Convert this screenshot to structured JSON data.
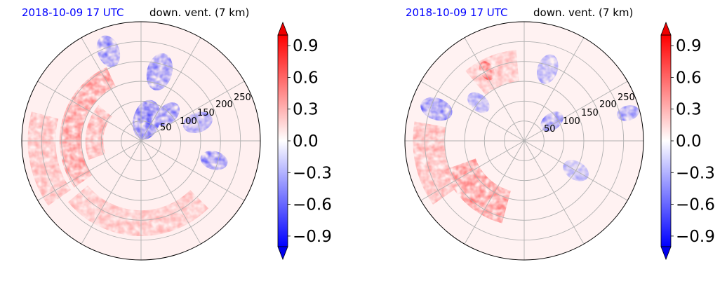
{
  "chart_data": [
    {
      "type": "heatmap",
      "projection": "polar",
      "date_label": "2018-10-09 17 UTC",
      "title": "down. vent. (7 km)",
      "radial_ticks": [
        50,
        100,
        150,
        200,
        250
      ],
      "radial_tick_labels": [
        "50",
        "100",
        "150",
        "200",
        "250"
      ],
      "r_max": 300,
      "angular_gridlines_deg": [
        0,
        30,
        60,
        90,
        120,
        150,
        180,
        210,
        240,
        270,
        300,
        330
      ],
      "grid": true,
      "colormap": "bwr",
      "clim": [
        -1.0,
        1.0
      ],
      "colorbar_ticks": [
        "0.9",
        "0.6",
        "0.3",
        "0.0",
        "−0.3",
        "−0.6",
        "−0.9"
      ],
      "colorbar_tick_values": [
        0.9,
        0.6,
        0.3,
        0.0,
        -0.3,
        -0.6,
        -0.9
      ],
      "colorbar_extend": "both",
      "features": [
        {
          "kind": "band",
          "value": 0.75,
          "r_inner": 150,
          "r_outer": 205,
          "theta_start": 115,
          "theta_end": 215
        },
        {
          "kind": "band",
          "value": 0.6,
          "r_inner": 95,
          "r_outer": 140,
          "theta_start": 140,
          "theta_end": 200
        },
        {
          "kind": "band",
          "value": 0.45,
          "r_inner": 175,
          "r_outer": 240,
          "theta_start": 220,
          "theta_end": 315
        },
        {
          "kind": "band",
          "value": 0.5,
          "r_inner": 215,
          "r_outer": 285,
          "theta_start": 165,
          "theta_end": 215
        },
        {
          "kind": "blob",
          "value": -0.95,
          "r": 55,
          "theta": 75,
          "size": 32
        },
        {
          "kind": "blob",
          "value": -0.85,
          "r": 95,
          "theta": 45,
          "size": 22
        },
        {
          "kind": "blob",
          "value": -0.8,
          "r": 180,
          "theta": 75,
          "size": 30
        },
        {
          "kind": "blob",
          "value": -0.7,
          "r": 150,
          "theta": 18,
          "size": 24
        },
        {
          "kind": "blob",
          "value": -0.75,
          "r": 240,
          "theta": 110,
          "size": 26
        },
        {
          "kind": "blob",
          "value": -0.8,
          "r": 190,
          "theta": 345,
          "size": 22
        }
      ]
    },
    {
      "type": "heatmap",
      "projection": "polar",
      "date_label": "2018-10-09 17 UTC",
      "title": "down. vent. (7 km)",
      "radial_ticks": [
        50,
        100,
        150,
        200,
        250
      ],
      "radial_tick_labels": [
        "50",
        "100",
        "150",
        "200",
        "250"
      ],
      "r_max": 300,
      "angular_gridlines_deg": [
        0,
        30,
        60,
        90,
        120,
        150,
        180,
        210,
        240,
        270,
        300,
        330
      ],
      "grid": true,
      "colormap": "bwr",
      "clim": [
        -1.0,
        1.0
      ],
      "colorbar_ticks": [
        "0.9",
        "0.6",
        "0.3",
        "0.0",
        "−0.3",
        "−0.6",
        "−0.9"
      ],
      "colorbar_tick_values": [
        0.9,
        0.6,
        0.3,
        0.0,
        -0.3,
        -0.6,
        -0.9
      ],
      "colorbar_extend": "both",
      "features": [
        {
          "kind": "band",
          "value": 0.8,
          "r_inner": 130,
          "r_outer": 215,
          "theta_start": 200,
          "theta_end": 255
        },
        {
          "kind": "band",
          "value": 0.55,
          "r_inner": 200,
          "r_outer": 280,
          "theta_start": 170,
          "theta_end": 215
        },
        {
          "kind": "band",
          "value": 0.45,
          "r_inner": 150,
          "r_outer": 230,
          "theta_start": 95,
          "theta_end": 130
        },
        {
          "kind": "blob",
          "value": 0.9,
          "r": 200,
          "theta": 118,
          "size": 16
        },
        {
          "kind": "blob",
          "value": -0.85,
          "r": 235,
          "theta": 160,
          "size": 26
        },
        {
          "kind": "blob",
          "value": -0.6,
          "r": 150,
          "theta": 140,
          "size": 20
        },
        {
          "kind": "blob",
          "value": -0.75,
          "r": 85,
          "theta": 35,
          "size": 20
        },
        {
          "kind": "blob",
          "value": -0.6,
          "r": 190,
          "theta": 72,
          "size": 24
        },
        {
          "kind": "blob",
          "value": -0.5,
          "r": 150,
          "theta": 330,
          "size": 22
        },
        {
          "kind": "blob",
          "value": -0.7,
          "r": 270,
          "theta": 15,
          "size": 18
        }
      ]
    }
  ]
}
